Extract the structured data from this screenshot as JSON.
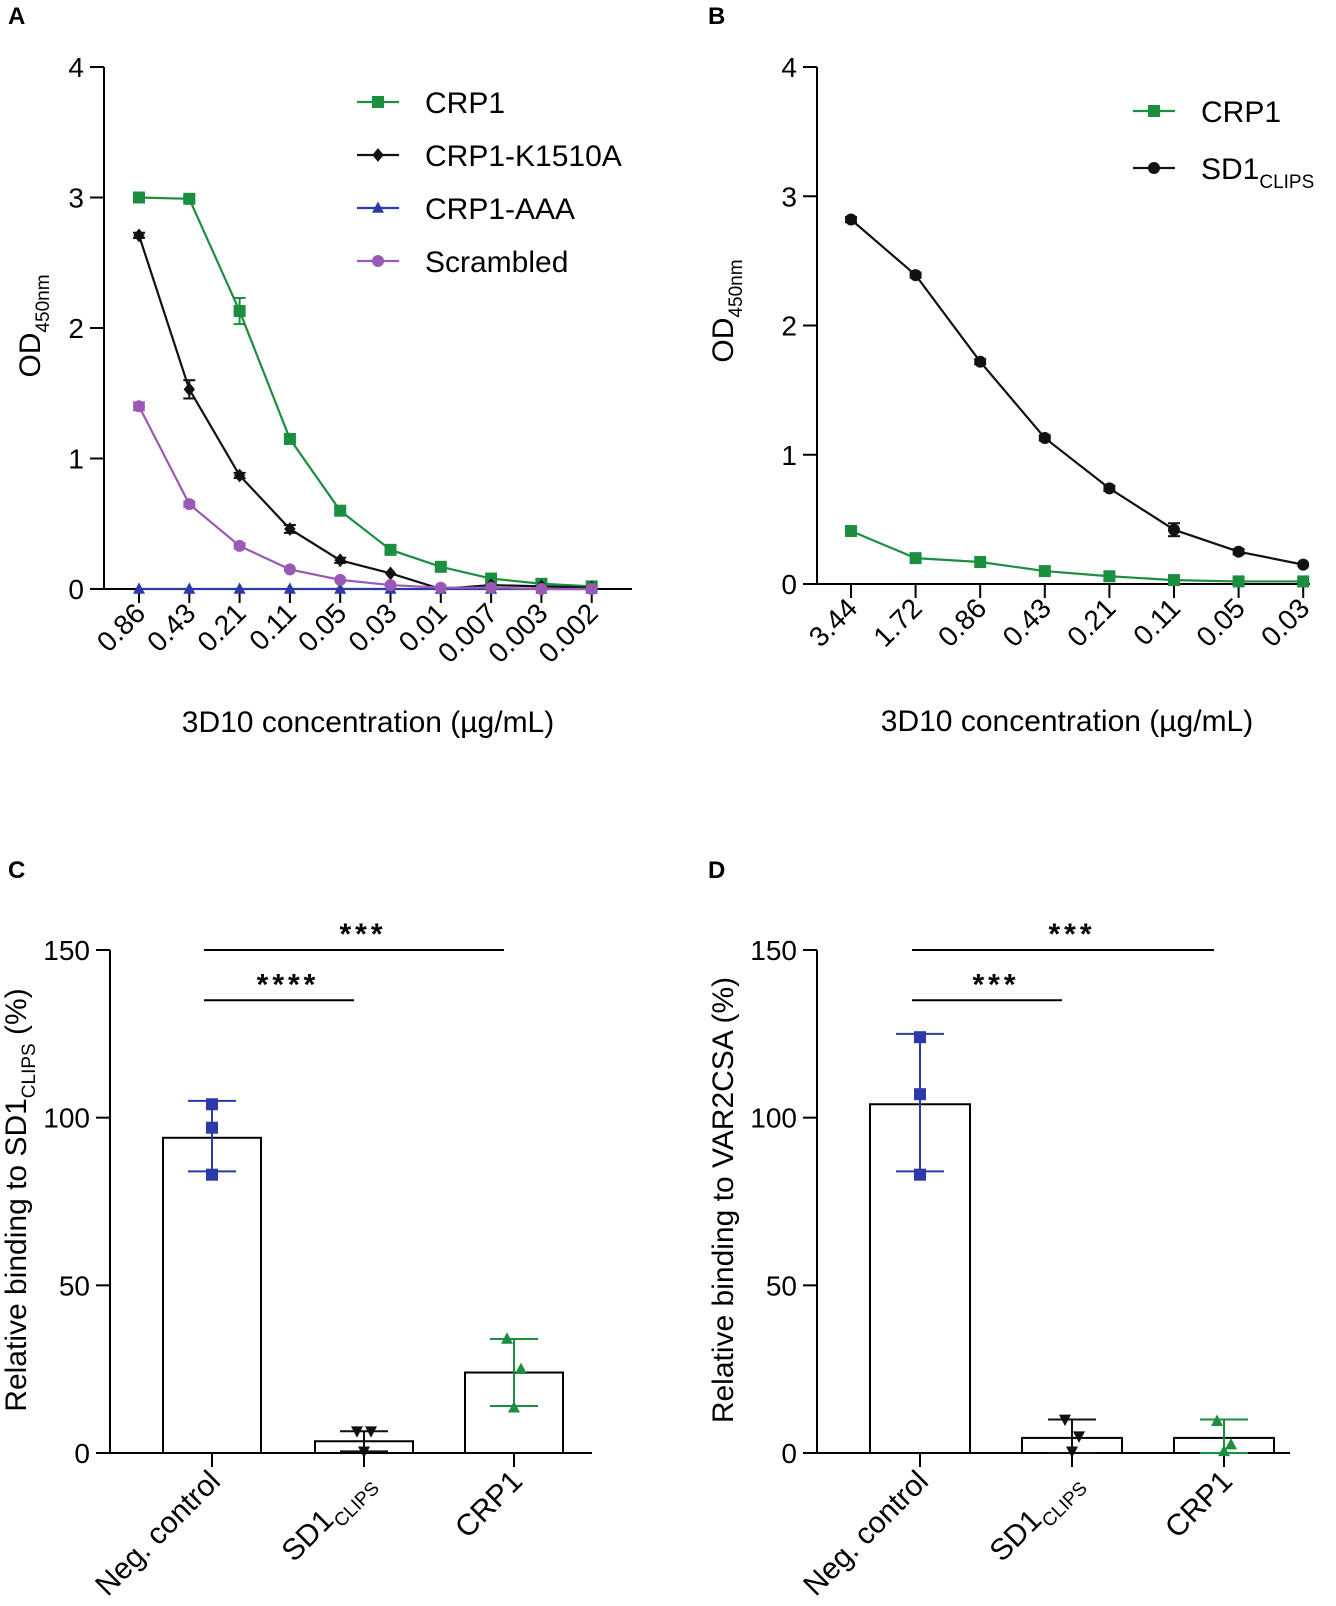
{
  "colors": {
    "green": "#1b8e3f",
    "black": "#111111",
    "blue": "#2b3aa8",
    "purple": "#9b59b6"
  },
  "panels": {
    "A": {
      "letter": "A"
    },
    "B": {
      "letter": "B"
    },
    "C": {
      "letter": "C"
    },
    "D": {
      "letter": "D"
    }
  },
  "chart_data": [
    {
      "id": "A",
      "type": "line",
      "title": "",
      "xlabel": "3D10 concentration (µg/mL)",
      "ylabel_main": "OD",
      "ylabel_sub": "450nm",
      "ylim": [
        0,
        4
      ],
      "yticks": [
        "0",
        "1",
        "2",
        "3",
        "4"
      ],
      "categories": [
        "0.86",
        "0.43",
        "0.21",
        "0.11",
        "0.05",
        "0.03",
        "0.01",
        "0.007",
        "0.003",
        "0.002"
      ],
      "legend_position": "top-right",
      "series": [
        {
          "name": "CRP1",
          "color": "#1b8e3f",
          "marker": "square",
          "values": [
            3.0,
            2.99,
            2.13,
            1.15,
            0.6,
            0.3,
            0.17,
            0.08,
            0.04,
            0.02
          ],
          "errors": [
            0.02,
            0.02,
            0.1,
            0.02,
            0.02,
            0.02,
            0.01,
            0.01,
            0.01,
            0.01
          ]
        },
        {
          "name": "CRP1-K1510A",
          "color": "#111111",
          "marker": "diamond",
          "values": [
            2.71,
            1.53,
            0.87,
            0.46,
            0.22,
            0.12,
            0.0,
            0.03,
            0.02,
            0.01
          ],
          "errors": [
            0.02,
            0.07,
            0.02,
            0.03,
            0.02,
            0.01,
            0.01,
            0.01,
            0.01,
            0.01
          ]
        },
        {
          "name": "CRP1-AAA",
          "color": "#2b3aa8",
          "marker": "triangle",
          "values": [
            0.0,
            0.0,
            0.0,
            0.0,
            0.0,
            0.0,
            0.0,
            0.0,
            0.0,
            0.0
          ],
          "errors": [
            0,
            0,
            0,
            0,
            0,
            0,
            0,
            0,
            0,
            0
          ]
        },
        {
          "name": "Scrambled",
          "color": "#9b59b6",
          "marker": "circle",
          "values": [
            1.4,
            0.65,
            0.33,
            0.15,
            0.07,
            0.03,
            0.01,
            0.01,
            0.0,
            0.0
          ],
          "errors": [
            0.03,
            0.02,
            0.02,
            0.01,
            0.01,
            0.01,
            0.0,
            0.0,
            0.0,
            0.0
          ]
        }
      ]
    },
    {
      "id": "B",
      "type": "line",
      "title": "",
      "xlabel": "3D10 concentration (µg/mL)",
      "ylabel_main": "OD",
      "ylabel_sub": "450nm",
      "ylim": [
        0,
        4
      ],
      "yticks": [
        "0",
        "1",
        "2",
        "3",
        "4"
      ],
      "categories": [
        "3.44",
        "1.72",
        "0.86",
        "0.43",
        "0.21",
        "0.11",
        "0.05",
        "0.03"
      ],
      "legend_position": "top-right",
      "series": [
        {
          "name": "CRP1",
          "name_sub": "",
          "color": "#1b8e3f",
          "marker": "square",
          "values": [
            0.41,
            0.2,
            0.17,
            0.1,
            0.06,
            0.03,
            0.02,
            0.02
          ],
          "errors": [
            0.01,
            0.01,
            0.01,
            0.01,
            0.01,
            0.01,
            0.0,
            0.0
          ]
        },
        {
          "name": "SD1",
          "name_sub": "CLIPS",
          "color": "#111111",
          "marker": "circle",
          "values": [
            2.82,
            2.39,
            1.72,
            1.13,
            0.74,
            0.42,
            0.25,
            0.15
          ],
          "errors": [
            0.02,
            0.02,
            0.02,
            0.02,
            0.02,
            0.05,
            0.02,
            0.01
          ]
        }
      ]
    },
    {
      "id": "C",
      "type": "bar",
      "title": "",
      "xlabel": "",
      "ylabel_main": "Relative binding to SD1",
      "ylabel_sub": "CLIPS",
      "ylabel_tail": " (%)",
      "ylim": [
        0,
        150
      ],
      "yticks": [
        "0",
        "50",
        "100",
        "150"
      ],
      "categories": [
        {
          "label": "Neg. control",
          "sub": ""
        },
        {
          "label": "SD1",
          "sub": "CLIPS"
        },
        {
          "label": "CRP1",
          "sub": ""
        }
      ],
      "bars": [
        {
          "mean": 94,
          "sd_low": 84,
          "sd_high": 105,
          "points": [
            104,
            97,
            83
          ],
          "marker": "square",
          "color": "#2b3aa8"
        },
        {
          "mean": 3.5,
          "sd_low": 0.5,
          "sd_high": 6.5,
          "points": [
            6.5,
            6.5,
            0.5
          ],
          "marker": "triangle-down",
          "color": "#111111"
        },
        {
          "mean": 24,
          "sd_low": 14,
          "sd_high": 34,
          "points": [
            34,
            25,
            13.5
          ],
          "marker": "triangle",
          "color": "#1b8e3f"
        }
      ],
      "significance": [
        {
          "from": 0,
          "to": 2,
          "y": 150,
          "label": "***"
        },
        {
          "from": 0,
          "to": 1,
          "y": 135,
          "label": "****"
        }
      ]
    },
    {
      "id": "D",
      "type": "bar",
      "title": "",
      "xlabel": "",
      "ylabel_main": "Relative binding to VAR2CSA (%)",
      "ylabel_sub": "",
      "ylabel_tail": "",
      "ylim": [
        0,
        150
      ],
      "yticks": [
        "0",
        "50",
        "100",
        "150"
      ],
      "categories": [
        {
          "label": "Neg. control",
          "sub": ""
        },
        {
          "label": "SD1",
          "sub": "CLIPS"
        },
        {
          "label": "CRP1",
          "sub": ""
        }
      ],
      "bars": [
        {
          "mean": 104,
          "sd_low": 84,
          "sd_high": 125,
          "points": [
            124,
            107,
            83
          ],
          "marker": "square",
          "color": "#2b3aa8"
        },
        {
          "mean": 4.5,
          "sd_low": 0,
          "sd_high": 10,
          "points": [
            10,
            5,
            0.5
          ],
          "marker": "triangle-down",
          "color": "#111111"
        },
        {
          "mean": 4.5,
          "sd_low": 0,
          "sd_high": 10,
          "points": [
            9.5,
            2.5,
            0.5
          ],
          "marker": "triangle",
          "color": "#1b8e3f"
        }
      ],
      "significance": [
        {
          "from": 0,
          "to": 2,
          "y": 150,
          "label": "***"
        },
        {
          "from": 0,
          "to": 1,
          "y": 135,
          "label": "***"
        }
      ]
    }
  ]
}
